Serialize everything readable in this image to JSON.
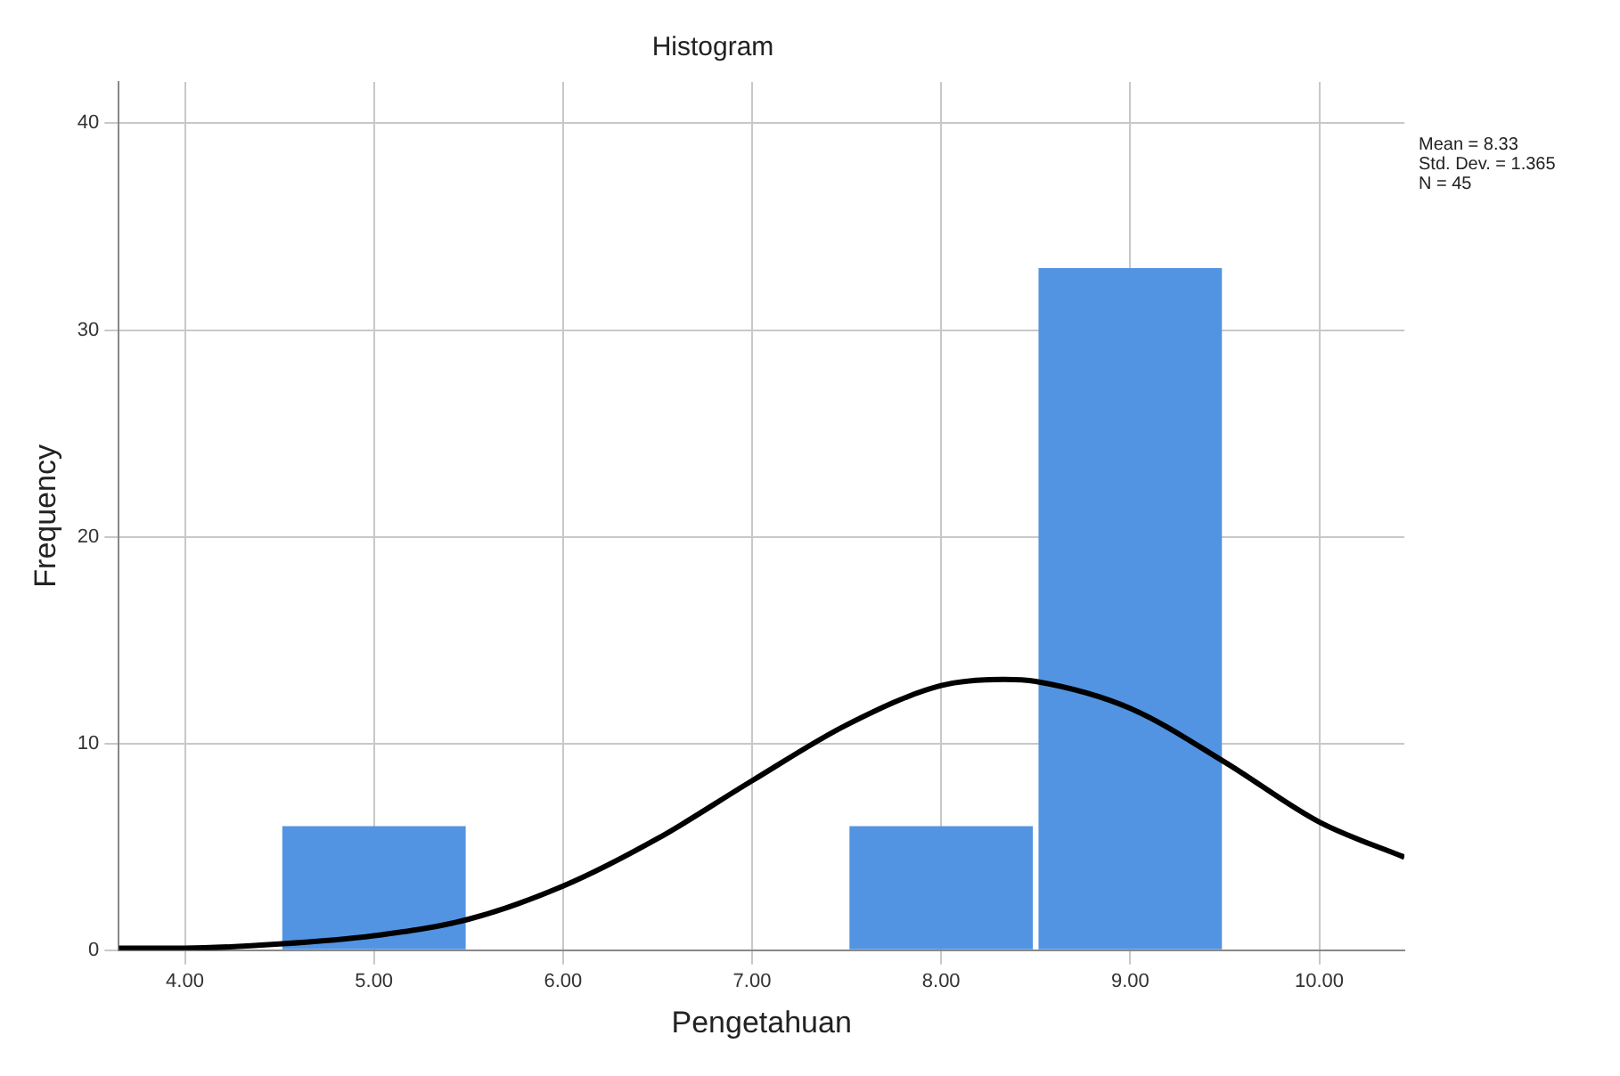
{
  "chart_data": {
    "type": "histogram",
    "title": "Histogram",
    "xlabel": "Pengetahuan",
    "ylabel": "Frequency",
    "bins": [
      4.5,
      5.5,
      6.5,
      7.5,
      8.5,
      9.5
    ],
    "values": [
      6,
      0,
      0,
      6,
      33
    ],
    "color": "#5294e2",
    "series": [
      {
        "type": "line",
        "color": "#000000",
        "x": [
          3.65,
          4.0,
          4.5,
          5.0,
          5.5,
          6.0,
          6.5,
          7.0,
          7.5,
          8.0,
          8.33,
          8.5,
          9.0,
          9.5,
          10.0,
          10.45
        ],
        "values": [
          0.1,
          0.1,
          0.3,
          0.7,
          1.5,
          3.1,
          5.4,
          8.2,
          10.9,
          12.8,
          13.1,
          13.0,
          11.7,
          9.1,
          6.2,
          4.5
        ]
      }
    ],
    "xlim": [
      3.65,
      10.45
    ],
    "xticks": [
      {
        "value": 4,
        "label": "4.00"
      },
      {
        "value": 5,
        "label": "5.00"
      },
      {
        "value": 6,
        "label": "6.00"
      },
      {
        "value": 7,
        "label": "7.00"
      },
      {
        "value": 8,
        "label": "8.00"
      },
      {
        "value": 9,
        "label": "9.00"
      },
      {
        "value": 10,
        "label": "10.00"
      }
    ],
    "ylim": [
      0,
      42
    ],
    "yticks": [
      0,
      10,
      20,
      30,
      40
    ],
    "grid": true,
    "marker": "none",
    "annotations": [
      "Mean = 8.33\nStd. Dev. = 1.365\nN = 45"
    ]
  }
}
